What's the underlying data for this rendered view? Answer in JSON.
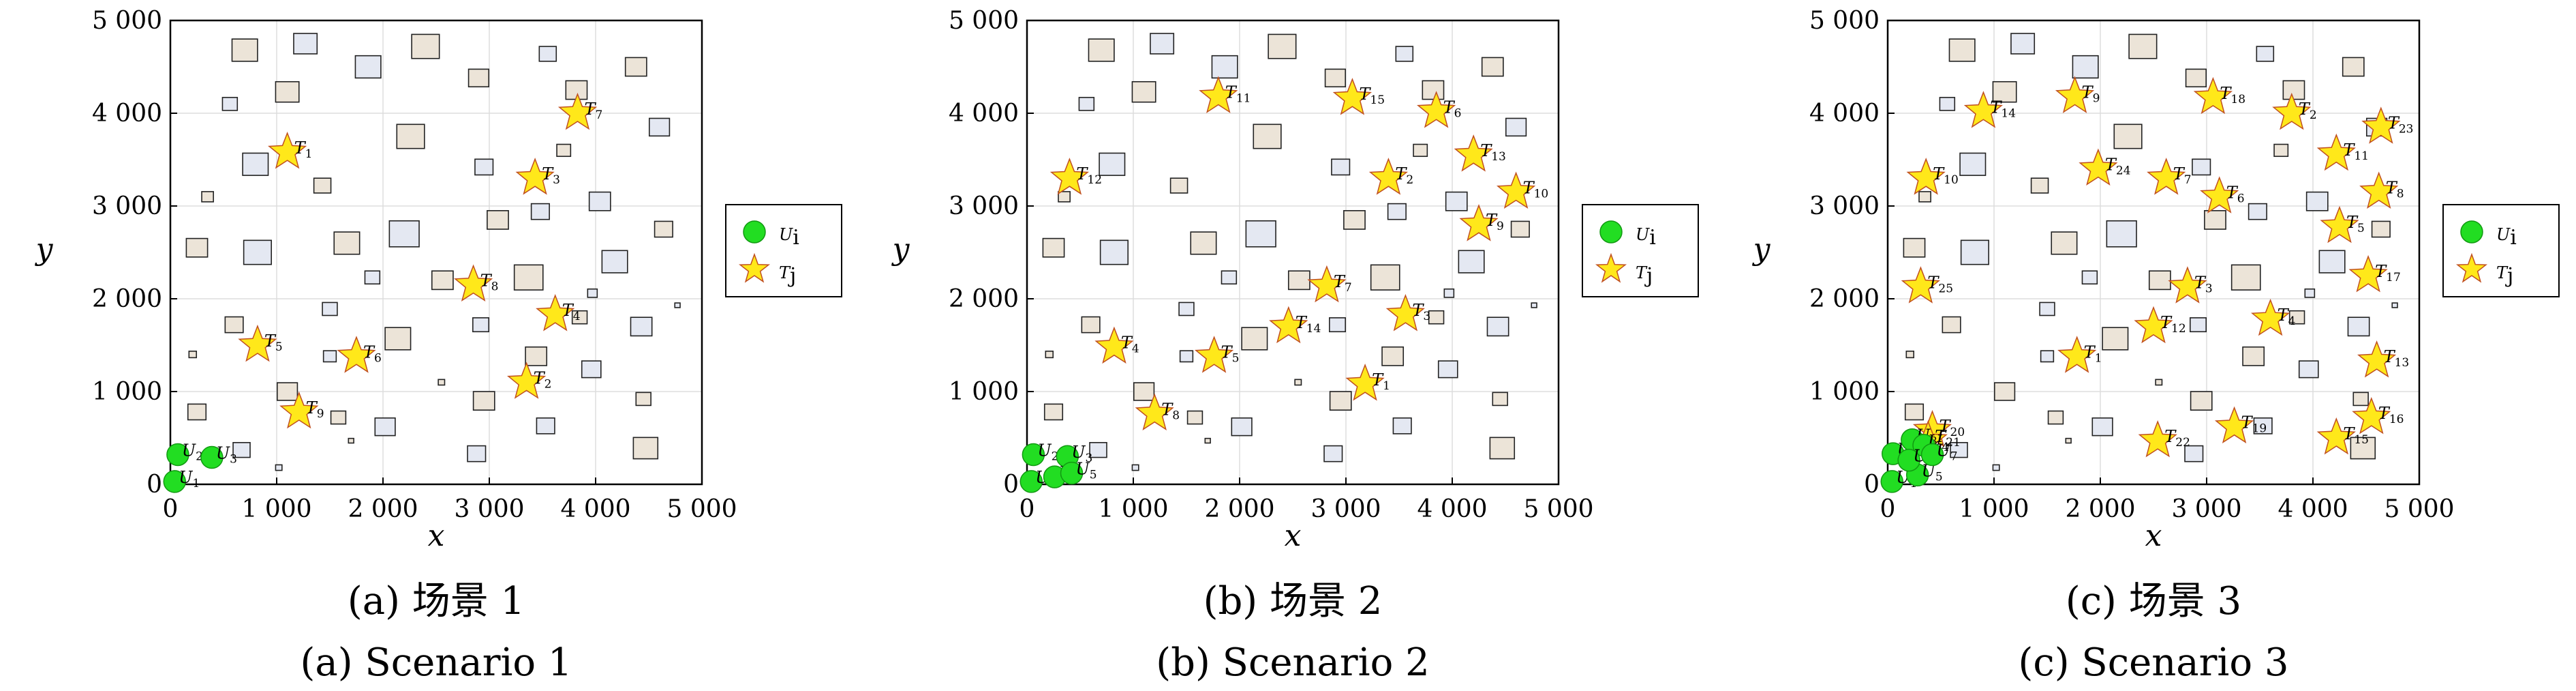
{
  "chart_data": [
    {
      "type": "scatter",
      "caption_cn": "(a) 场景 1",
      "caption_en": "(a) Scenario 1",
      "xlabel": "x",
      "ylabel": "y",
      "xlim": [
        0,
        5000
      ],
      "ylim": [
        0,
        5000
      ],
      "xticks": [
        "0",
        "1 000",
        "2 000",
        "3 000",
        "4 000",
        "5 000"
      ],
      "yticks": [
        "0",
        "1 000",
        "2 000",
        "3 000",
        "4 000",
        "5 000"
      ],
      "grid": true,
      "legend": {
        "position": "right",
        "entries": [
          "U_i",
          "T_j"
        ]
      },
      "series": [
        {
          "name": "U_i",
          "points": [
            {
              "label": "U_1",
              "x": 40,
              "y": 30
            },
            {
              "label": "U_2",
              "x": 70,
              "y": 320
            },
            {
              "label": "U_3",
              "x": 390,
              "y": 290
            }
          ]
        },
        {
          "name": "T_j",
          "points": [
            {
              "label": "T_1",
              "x": 1100,
              "y": 3580
            },
            {
              "label": "T_2",
              "x": 3350,
              "y": 1100
            },
            {
              "label": "T_3",
              "x": 3430,
              "y": 3300
            },
            {
              "label": "T_4",
              "x": 3620,
              "y": 1830
            },
            {
              "label": "T_5",
              "x": 820,
              "y": 1500
            },
            {
              "label": "T_6",
              "x": 1750,
              "y": 1380
            },
            {
              "label": "T_7",
              "x": 3830,
              "y": 4000
            },
            {
              "label": "T_8",
              "x": 2850,
              "y": 2150
            },
            {
              "label": "T_9",
              "x": 1210,
              "y": 780
            }
          ]
        }
      ]
    },
    {
      "type": "scatter",
      "caption_cn": "(b) 场景 2",
      "caption_en": "(b) Scenario 2",
      "xlabel": "x",
      "ylabel": "y",
      "xlim": [
        0,
        5000
      ],
      "ylim": [
        0,
        5000
      ],
      "xticks": [
        "0",
        "1 000",
        "2 000",
        "3 000",
        "4 000",
        "5 000"
      ],
      "yticks": [
        "0",
        "1 000",
        "2 000",
        "3 000",
        "4 000",
        "5 000"
      ],
      "grid": true,
      "legend": {
        "position": "right",
        "entries": [
          "U_i",
          "T_j"
        ]
      },
      "series": [
        {
          "name": "U_i",
          "points": [
            {
              "label": "U_1",
              "x": 40,
              "y": 30
            },
            {
              "label": "U_2",
              "x": 60,
              "y": 320
            },
            {
              "label": "U_3",
              "x": 380,
              "y": 300
            },
            {
              "label": "U_4",
              "x": 260,
              "y": 80
            },
            {
              "label": "U_5",
              "x": 420,
              "y": 120
            }
          ]
        },
        {
          "name": "T_j",
          "points": [
            {
              "label": "T_1",
              "x": 3180,
              "y": 1080
            },
            {
              "label": "T_2",
              "x": 3400,
              "y": 3300
            },
            {
              "label": "T_3",
              "x": 3560,
              "y": 1830
            },
            {
              "label": "T_4",
              "x": 820,
              "y": 1480
            },
            {
              "label": "T_5",
              "x": 1760,
              "y": 1380
            },
            {
              "label": "T_6",
              "x": 3850,
              "y": 4020
            },
            {
              "label": "T_7",
              "x": 2820,
              "y": 2140
            },
            {
              "label": "T_8",
              "x": 1200,
              "y": 760
            },
            {
              "label": "T_9",
              "x": 4250,
              "y": 2800
            },
            {
              "label": "T_10",
              "x": 4600,
              "y": 3150
            },
            {
              "label": "T_11",
              "x": 1800,
              "y": 4180
            },
            {
              "label": "T_12",
              "x": 400,
              "y": 3300
            },
            {
              "label": "T_13",
              "x": 4200,
              "y": 3550
            },
            {
              "label": "T_14",
              "x": 2460,
              "y": 1700
            },
            {
              "label": "T_15",
              "x": 3060,
              "y": 4160
            }
          ]
        }
      ]
    },
    {
      "type": "scatter",
      "caption_cn": "(c) 场景 3",
      "caption_en": "(c) Scenario 3",
      "xlabel": "x",
      "ylabel": "y",
      "xlim": [
        0,
        5000
      ],
      "ylim": [
        0,
        5000
      ],
      "xticks": [
        "0",
        "1 000",
        "2 000",
        "3 000",
        "4 000",
        "5 000"
      ],
      "yticks": [
        "0",
        "1 000",
        "2 000",
        "3 000",
        "4 000",
        "5 000"
      ],
      "grid": true,
      "legend": {
        "position": "right",
        "entries": [
          "U_i",
          "T_j"
        ]
      },
      "series": [
        {
          "name": "U_i",
          "points": [
            {
              "label": "U_1",
              "x": 40,
              "y": 30
            },
            {
              "label": "U_2",
              "x": 50,
              "y": 330
            },
            {
              "label": "U_3",
              "x": 230,
              "y": 480
            },
            {
              "label": "U_4",
              "x": 340,
              "y": 420
            },
            {
              "label": "U_5",
              "x": 280,
              "y": 100
            },
            {
              "label": "U_6",
              "x": 200,
              "y": 260
            },
            {
              "label": "U_7",
              "x": 420,
              "y": 320
            }
          ]
        },
        {
          "name": "T_j",
          "points": [
            {
              "label": "T_1",
              "x": 1780,
              "y": 1380
            },
            {
              "label": "T_2",
              "x": 3800,
              "y": 4000
            },
            {
              "label": "T_3",
              "x": 2820,
              "y": 2130
            },
            {
              "label": "T_4",
              "x": 3600,
              "y": 1780
            },
            {
              "label": "T_5",
              "x": 4250,
              "y": 2780
            },
            {
              "label": "T_6",
              "x": 3120,
              "y": 3100
            },
            {
              "label": "T_7",
              "x": 2620,
              "y": 3300
            },
            {
              "label": "T_8",
              "x": 4620,
              "y": 3150
            },
            {
              "label": "T_9",
              "x": 1760,
              "y": 4180
            },
            {
              "label": "T_10",
              "x": 360,
              "y": 3300
            },
            {
              "label": "T_11",
              "x": 4220,
              "y": 3560
            },
            {
              "label": "T_12",
              "x": 2500,
              "y": 1700
            },
            {
              "label": "T_13",
              "x": 4600,
              "y": 1330
            },
            {
              "label": "T_14",
              "x": 900,
              "y": 4020
            },
            {
              "label": "T_15",
              "x": 4220,
              "y": 500
            },
            {
              "label": "T_16",
              "x": 4550,
              "y": 720
            },
            {
              "label": "T_17",
              "x": 4520,
              "y": 2250
            },
            {
              "label": "T_18",
              "x": 3060,
              "y": 4170
            },
            {
              "label": "T_19",
              "x": 3260,
              "y": 620
            },
            {
              "label": "T_20",
              "x": 420,
              "y": 580
            },
            {
              "label": "T_21",
              "x": 380,
              "y": 470
            },
            {
              "label": "T_22",
              "x": 2540,
              "y": 470
            },
            {
              "label": "T_23",
              "x": 4640,
              "y": 3850
            },
            {
              "label": "T_24",
              "x": 1980,
              "y": 3400
            },
            {
              "label": "T_25",
              "x": 310,
              "y": 2130
            }
          ]
        }
      ]
    }
  ],
  "colors": {
    "user": "#22dd22",
    "target_fill": "#ffe81a",
    "obstacle_a": "#ece4d8",
    "obstacle_b": "#e4e8f2",
    "grid": "#dddddd"
  }
}
